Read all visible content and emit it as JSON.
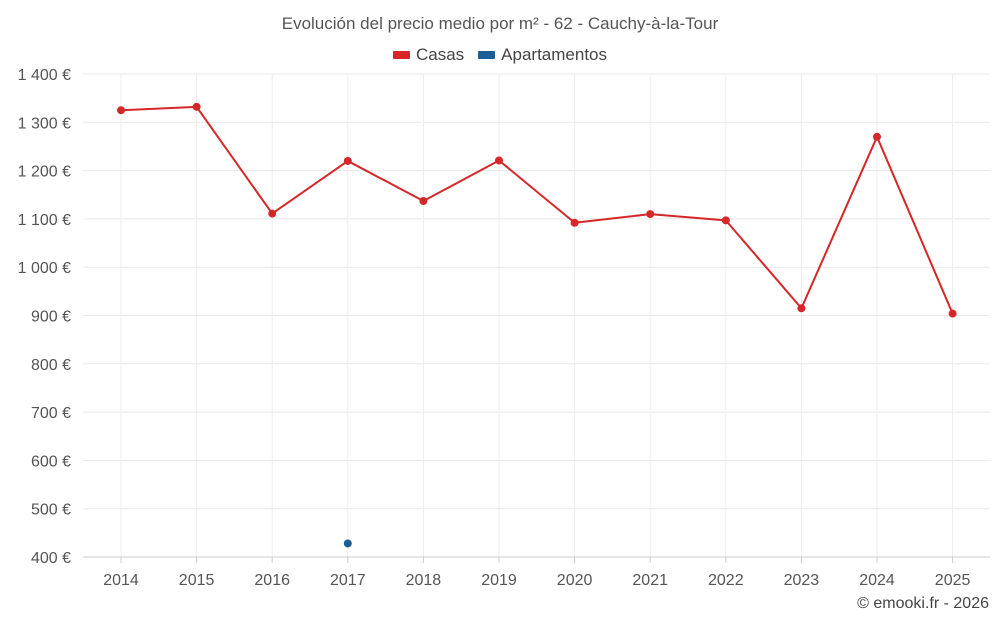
{
  "chart_data": {
    "type": "line",
    "title": "Evolución del precio medio por m² - 62 - Cauchy-à-la-Tour",
    "categories": [
      "2014",
      "2015",
      "2016",
      "2017",
      "2018",
      "2019",
      "2020",
      "2021",
      "2022",
      "2023",
      "2024",
      "2025"
    ],
    "series": [
      {
        "name": "Casas",
        "color": "#d62728",
        "values": [
          1325,
          1332,
          1111,
          1220,
          1137,
          1221,
          1092,
          1110,
          1097,
          915,
          1270,
          904
        ]
      },
      {
        "name": "Apartamentos",
        "color": "#1a5e96",
        "values": [
          null,
          null,
          null,
          428,
          null,
          null,
          null,
          null,
          null,
          null,
          null,
          null
        ]
      }
    ],
    "ylim": [
      400,
      1400
    ],
    "yticks": [
      400,
      500,
      600,
      700,
      800,
      900,
      1000,
      1100,
      1200,
      1300,
      1400
    ],
    "ytick_labels": [
      "400 €",
      "500 €",
      "600 €",
      "700 €",
      "800 €",
      "900 €",
      "1 000 €",
      "1 100 €",
      "1 200 €",
      "1 300 €",
      "1 400 €"
    ],
    "grid": true,
    "legend_position": "top-center"
  },
  "legend": {
    "casas_label": "Casas",
    "apartamentos_label": "Apartamentos",
    "casas_color": "#d62728",
    "apartamentos_color": "#1a5e96"
  },
  "footer": {
    "copyright": "© emooki.fr - 2026"
  }
}
